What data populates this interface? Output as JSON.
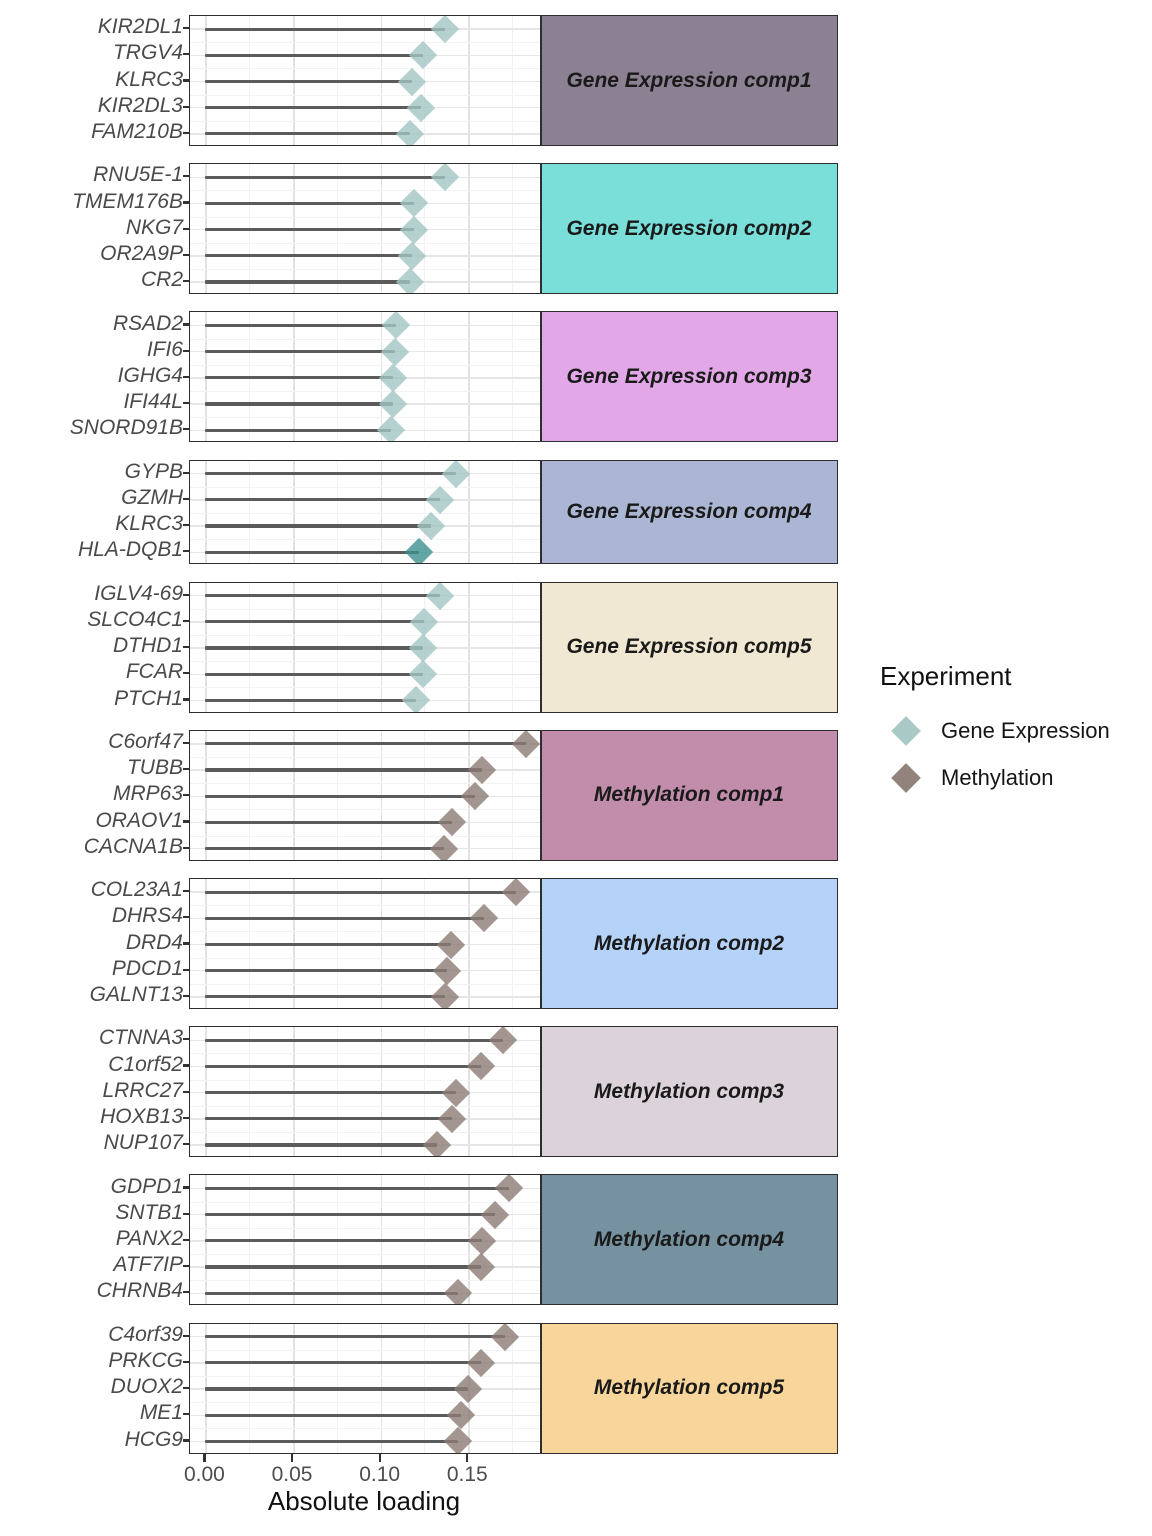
{
  "chart_data": {
    "type": "lollipop",
    "title": "",
    "xlabel": "Absolute loading",
    "ylabel": "",
    "x_tick_labels": [
      "0.00",
      "0.05",
      "0.10",
      "0.15"
    ],
    "x_tick_values": [
      0,
      0.05,
      0.1,
      0.15
    ],
    "x_domain": [
      -0.0088,
      0.1918
    ],
    "grid": "on",
    "legend_position": "right",
    "stem_color": "#5b5b5b",
    "legend": {
      "title": "Experiment",
      "items": [
        {
          "label": "Gene Expression",
          "color": "#a3c6c3"
        },
        {
          "label": "Methylation",
          "color": "#8c7c75"
        }
      ]
    },
    "marker_colors": {
      "Gene Expression": "#a3c6c3",
      "Methylation": "#8c7c75"
    },
    "facets": [
      {
        "label": "Gene Expression comp1",
        "experiment": "Gene Expression",
        "strip_color": "#8c8192",
        "genes": [
          {
            "name": "KIR2DL1",
            "value": 0.137
          },
          {
            "name": "TRGV4",
            "value": 0.124
          },
          {
            "name": "KLRC3",
            "value": 0.118
          },
          {
            "name": "KIR2DL3",
            "value": 0.123
          },
          {
            "name": "FAM210B",
            "value": 0.117
          }
        ]
      },
      {
        "label": "Gene Expression comp2",
        "experiment": "Gene Expression",
        "strip_color": "#7adfd9",
        "genes": [
          {
            "name": "RNU5E-1",
            "value": 0.137
          },
          {
            "name": "TMEM176B",
            "value": 0.119
          },
          {
            "name": "NKG7",
            "value": 0.119
          },
          {
            "name": "OR2A9P",
            "value": 0.118
          },
          {
            "name": "CR2",
            "value": 0.117
          }
        ]
      },
      {
        "label": "Gene Expression comp3",
        "experiment": "Gene Expression",
        "strip_color": "#e2a7e6",
        "genes": [
          {
            "name": "RSAD2",
            "value": 0.109
          },
          {
            "name": "IFI6",
            "value": 0.108
          },
          {
            "name": "IGHG4",
            "value": 0.107
          },
          {
            "name": "IFI44L",
            "value": 0.107
          },
          {
            "name": "SNORD91B",
            "value": 0.106
          }
        ]
      },
      {
        "label": "Gene Expression comp4",
        "experiment": "Gene Expression",
        "strip_color": "#aab6d3",
        "genes": [
          {
            "name": "GYPB",
            "value": 0.143
          },
          {
            "name": "GZMH",
            "value": 0.134
          },
          {
            "name": "KLRC3",
            "value": 0.129
          },
          {
            "name": "HLA-DQB1",
            "value": 0.122,
            "color": "#3d8f8f"
          }
        ]
      },
      {
        "label": "Gene Expression comp5",
        "experiment": "Gene Expression",
        "strip_color": "#f0e8d3",
        "genes": [
          {
            "name": "IGLV4-69",
            "value": 0.134
          },
          {
            "name": "SLCO4C1",
            "value": 0.125
          },
          {
            "name": "DTHD1",
            "value": 0.124
          },
          {
            "name": "FCAR",
            "value": 0.124
          },
          {
            "name": "PTCH1",
            "value": 0.12
          }
        ]
      },
      {
        "label": "Methylation comp1",
        "experiment": "Methylation",
        "strip_color": "#c28dab",
        "genes": [
          {
            "name": "C6orf47",
            "value": 0.183
          },
          {
            "name": "TUBB",
            "value": 0.158
          },
          {
            "name": "MRP63",
            "value": 0.154
          },
          {
            "name": "ORAOV1",
            "value": 0.141
          },
          {
            "name": "CACNA1B",
            "value": 0.136
          }
        ]
      },
      {
        "label": "Methylation comp2",
        "experiment": "Methylation",
        "strip_color": "#b5d2f8",
        "genes": [
          {
            "name": "COL23A1",
            "value": 0.177
          },
          {
            "name": "DHRS4",
            "value": 0.159
          },
          {
            "name": "DRD4",
            "value": 0.14
          },
          {
            "name": "PDCD1",
            "value": 0.138
          },
          {
            "name": "GALNT13",
            "value": 0.137
          }
        ]
      },
      {
        "label": "Methylation comp3",
        "experiment": "Methylation",
        "strip_color": "#dcd3da",
        "genes": [
          {
            "name": "CTNNA3",
            "value": 0.17
          },
          {
            "name": "C1orf52",
            "value": 0.157
          },
          {
            "name": "LRRC27",
            "value": 0.143
          },
          {
            "name": "HOXB13",
            "value": 0.141
          },
          {
            "name": "NUP107",
            "value": 0.132
          }
        ]
      },
      {
        "label": "Methylation comp4",
        "experiment": "Methylation",
        "strip_color": "#76919f",
        "genes": [
          {
            "name": "GDPD1",
            "value": 0.173
          },
          {
            "name": "SNTB1",
            "value": 0.165
          },
          {
            "name": "PANX2",
            "value": 0.158
          },
          {
            "name": "ATF7IP",
            "value": 0.157
          },
          {
            "name": "CHRNB4",
            "value": 0.144
          }
        ]
      },
      {
        "label": "Methylation comp5",
        "experiment": "Methylation",
        "strip_color": "#f8d69b",
        "genes": [
          {
            "name": "C4orf39",
            "value": 0.171
          },
          {
            "name": "PRKCG",
            "value": 0.157
          },
          {
            "name": "DUOX2",
            "value": 0.15
          },
          {
            "name": "ME1",
            "value": 0.146
          },
          {
            "name": "HCG9",
            "value": 0.144
          }
        ]
      }
    ]
  }
}
